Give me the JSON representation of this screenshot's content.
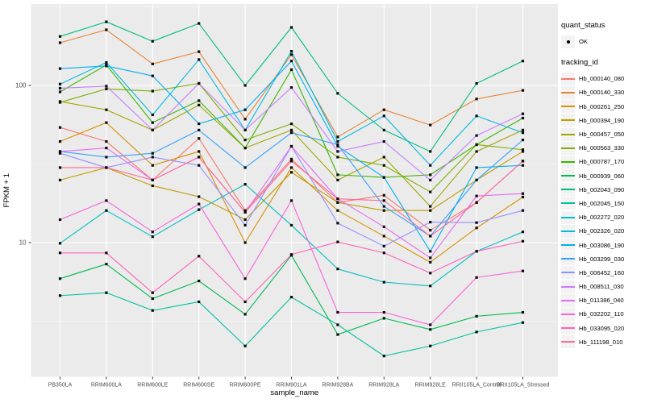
{
  "figure": {
    "background": "#ffffff",
    "panel_bg": "#ebebeb",
    "grid_major_color": "#ffffff",
    "grid_minor_color": "#f7f7f7",
    "tick_color": "#333333",
    "tick_label_color": "#4d4d4d",
    "axis_title_color": "#000000",
    "marker_color": "#0a0a0a"
  },
  "legend": {
    "quant_title": "quant_status",
    "quant_items": [
      {
        "label": "OK",
        "marker": "black-point"
      }
    ],
    "tracking_title": "tracking_id"
  },
  "axes": {
    "x_title": "sample_name",
    "y_title": "FPKM + 1",
    "y_tick_labels": [
      "100",
      "10"
    ],
    "y_tick_values": [
      100,
      10
    ]
  },
  "chart_data": {
    "type": "line",
    "title": "",
    "xlabel": "sample_name",
    "ylabel": "FPKM + 1",
    "y_scale": "log10",
    "ylim": [
      1.4,
      310
    ],
    "grid": true,
    "legend_position": "right",
    "point_marker": "small black square (quant_status = OK)",
    "categories": [
      "PB350LA",
      "RRIM600LA",
      "RRIM600LE",
      "RRIM600SE",
      "RRIM600PE",
      "RRIM901LA",
      "RRIM928BA",
      "RRIM928LA",
      "RRIM928LE",
      "RRII105LA_Control",
      "RRII105LA_Stressed"
    ],
    "series": [
      {
        "name": "Hb_000140_080",
        "color": "#F8766D",
        "values": [
          54,
          44,
          25,
          46,
          16,
          34,
          18,
          20,
          12,
          18,
          33
        ]
      },
      {
        "name": "Hb_000140_330",
        "color": "#EA8331",
        "values": [
          187,
          226,
          137,
          164,
          61,
          157,
          47,
          70,
          56,
          82,
          93
        ]
      },
      {
        "name": "Hb_000261_250",
        "color": "#D89000",
        "values": [
          44,
          58,
          31,
          38,
          10,
          30,
          16,
          11,
          7.5,
          12.4,
          19.5
        ]
      },
      {
        "name": "Hb_000394_190",
        "color": "#C09B00",
        "values": [
          25,
          30,
          23,
          19.6,
          14,
          28,
          18,
          16,
          16,
          25,
          38
        ]
      },
      {
        "name": "Hb_000457_050",
        "color": "#A3A500",
        "values": [
          79,
          70,
          52,
          75,
          40,
          52,
          25,
          35,
          17,
          38,
          52
        ]
      },
      {
        "name": "Hb_000563_330",
        "color": "#7CAE00",
        "values": [
          78,
          95,
          92,
          103,
          45,
          57,
          35,
          31,
          21,
          42,
          39
        ]
      },
      {
        "name": "Hb_000787_170",
        "color": "#39B600",
        "values": [
          91,
          135,
          58,
          80,
          40,
          126,
          27,
          26,
          27,
          42,
          62
        ]
      },
      {
        "name": "Hb_000939_060",
        "color": "#00BB4E",
        "values": [
          5.9,
          7.3,
          4.4,
          5.7,
          3.5,
          8.3,
          2.6,
          3.3,
          2.8,
          3.4,
          3.6
        ]
      },
      {
        "name": "Hb_002043_090",
        "color": "#00BF7D",
        "values": [
          205,
          254,
          191,
          248,
          100,
          234,
          89,
          52,
          38,
          103,
          143
        ]
      },
      {
        "name": "Hb_002045_150",
        "color": "#00C1A3",
        "values": [
          4.6,
          4.8,
          3.7,
          4.2,
          2.2,
          4.5,
          3.0,
          1.9,
          2.2,
          2.7,
          3.1
        ]
      },
      {
        "name": "Hb_002272_020",
        "color": "#00BFC4",
        "values": [
          9.9,
          16,
          10.9,
          16.2,
          23.5,
          12.9,
          6.8,
          5.6,
          5.3,
          8.8,
          11.7
        ]
      },
      {
        "name": "Hb_002326_020",
        "color": "#00BAE0",
        "values": [
          102,
          140,
          65,
          146,
          52,
          165,
          44,
          64,
          31,
          64,
          50
        ]
      },
      {
        "name": "Hb_003086_190",
        "color": "#00B0F6",
        "values": [
          128,
          133,
          115,
          57,
          70,
          143,
          41,
          26,
          8.8,
          30,
          31
        ]
      },
      {
        "name": "Hb_003299_030",
        "color": "#35A2FF",
        "values": [
          38,
          35,
          37,
          52,
          30,
          50,
          42,
          17,
          11,
          25,
          45
        ]
      },
      {
        "name": "Hb_006452_160",
        "color": "#9590FF",
        "values": [
          37,
          30,
          35,
          31,
          12.9,
          41,
          13.3,
          9.5,
          13.5,
          13.4,
          16
        ]
      },
      {
        "name": "Hb_008511_030",
        "color": "#C77CFF",
        "values": [
          96,
          99,
          52,
          103,
          52,
          97,
          38,
          44,
          25,
          48,
          66
        ]
      },
      {
        "name": "Hb_011386_040",
        "color": "#E76BF3",
        "values": [
          38,
          40,
          25,
          35,
          15.6,
          41,
          19,
          12.6,
          8,
          19.8,
          20.5
        ]
      },
      {
        "name": "Hb_032202_110",
        "color": "#FA62DB",
        "values": [
          14,
          18.5,
          11.7,
          17.6,
          5.9,
          18.5,
          3.6,
          3.6,
          3.0,
          6.0,
          6.6
        ]
      },
      {
        "name": "Hb_033095_020",
        "color": "#FF62BC",
        "values": [
          8.6,
          8.6,
          4.8,
          8.2,
          4.2,
          8.4,
          10.1,
          8.6,
          6.4,
          8.8,
          10.2
        ]
      },
      {
        "name": "Hb_111198_010",
        "color": "#FF6A98",
        "values": [
          30,
          30,
          25,
          35,
          15.6,
          33,
          19,
          18.5,
          11,
          18,
          33
        ]
      }
    ]
  }
}
